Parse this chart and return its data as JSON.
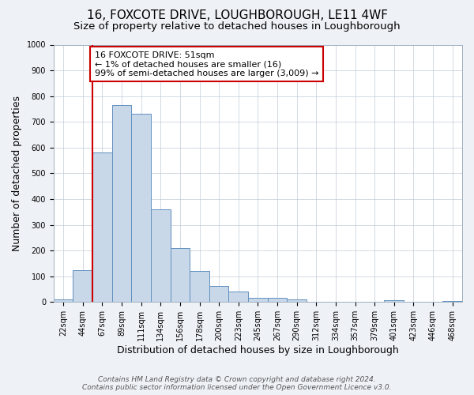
{
  "title": "16, FOXCOTE DRIVE, LOUGHBOROUGH, LE11 4WF",
  "subtitle": "Size of property relative to detached houses in Loughborough",
  "xlabel": "Distribution of detached houses by size in Loughborough",
  "ylabel": "Number of detached properties",
  "bin_labels": [
    "22sqm",
    "44sqm",
    "67sqm",
    "89sqm",
    "111sqm",
    "134sqm",
    "156sqm",
    "178sqm",
    "200sqm",
    "223sqm",
    "245sqm",
    "267sqm",
    "290sqm",
    "312sqm",
    "334sqm",
    "357sqm",
    "379sqm",
    "401sqm",
    "423sqm",
    "446sqm",
    "468sqm"
  ],
  "bin_values": [
    10,
    125,
    580,
    765,
    730,
    360,
    210,
    120,
    62,
    40,
    15,
    15,
    10,
    0,
    0,
    0,
    0,
    8,
    0,
    0,
    5
  ],
  "bar_color": "#c8d8e8",
  "bar_edge_color": "#6090c0",
  "vline_x": 1.5,
  "vline_color": "#cc0000",
  "annotation_text": "16 FOXCOTE DRIVE: 51sqm\n← 1% of detached houses are smaller (16)\n99% of semi-detached houses are larger (3,009) →",
  "annotation_box_color": "#ffffff",
  "annotation_box_edge_color": "#cc0000",
  "ylim": [
    0,
    1000
  ],
  "yticks": [
    0,
    100,
    200,
    300,
    400,
    500,
    600,
    700,
    800,
    900,
    1000
  ],
  "footer_line1": "Contains HM Land Registry data © Crown copyright and database right 2024.",
  "footer_line2": "Contains public sector information licensed under the Open Government Licence v3.0.",
  "bg_color": "#eef2f7",
  "plot_bg_color": "#ffffff",
  "grid_color": "#c0ccd8",
  "title_fontsize": 11,
  "subtitle_fontsize": 9.5,
  "axis_label_fontsize": 9,
  "tick_fontsize": 7,
  "annotation_fontsize": 8,
  "footer_fontsize": 6.5
}
